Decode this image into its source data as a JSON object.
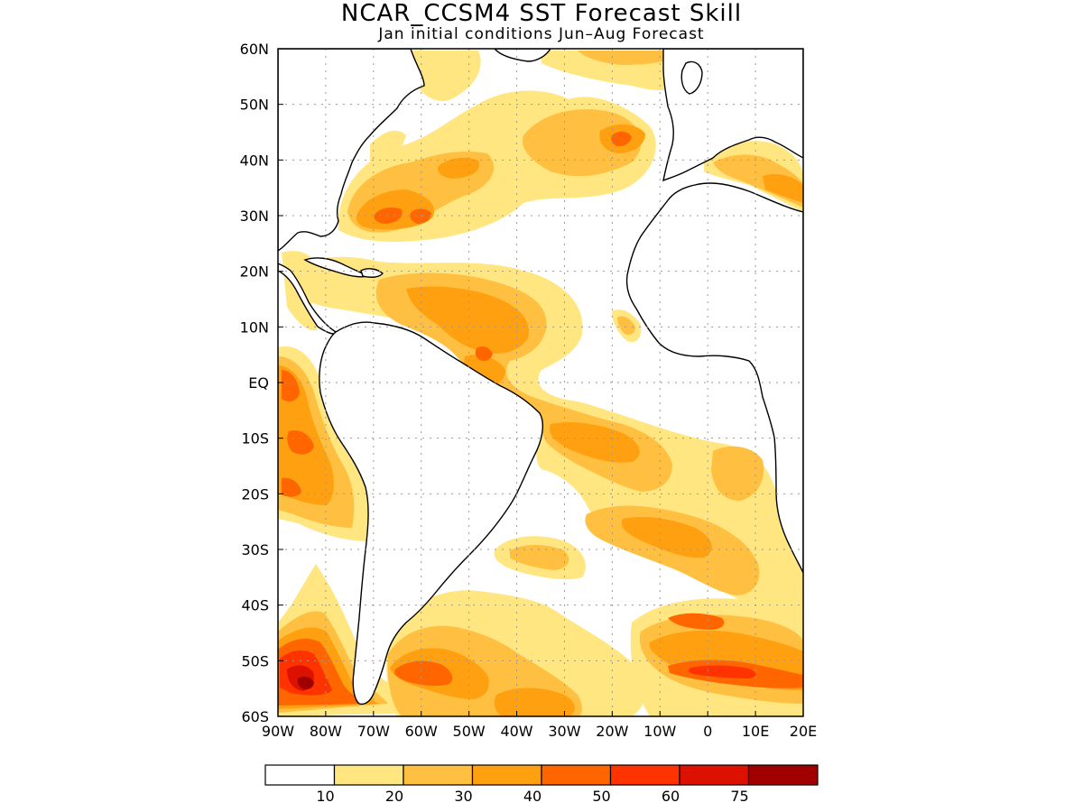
{
  "title": "NCAR_CCSM4 SST Forecast Skill",
  "subtitle": "Jan initial conditions   Jun–Aug Forecast",
  "map": {
    "lon_range": [
      -90,
      20
    ],
    "lat_range": [
      -60,
      60
    ],
    "lon_ticks": [
      {
        "value": -90,
        "label": "90W"
      },
      {
        "value": -80,
        "label": "80W"
      },
      {
        "value": -70,
        "label": "70W"
      },
      {
        "value": -60,
        "label": "60W"
      },
      {
        "value": -50,
        "label": "50W"
      },
      {
        "value": -40,
        "label": "40W"
      },
      {
        "value": -30,
        "label": "30W"
      },
      {
        "value": -20,
        "label": "20W"
      },
      {
        "value": -10,
        "label": "10W"
      },
      {
        "value": 0,
        "label": "0"
      },
      {
        "value": 10,
        "label": "10E"
      },
      {
        "value": 20,
        "label": "20E"
      }
    ],
    "lat_ticks": [
      {
        "value": 60,
        "label": "60N"
      },
      {
        "value": 50,
        "label": "50N"
      },
      {
        "value": 40,
        "label": "40N"
      },
      {
        "value": 30,
        "label": "30N"
      },
      {
        "value": 20,
        "label": "20N"
      },
      {
        "value": 10,
        "label": "10N"
      },
      {
        "value": 0,
        "label": "EQ"
      },
      {
        "value": -10,
        "label": "10S"
      },
      {
        "value": -20,
        "label": "20S"
      },
      {
        "value": -30,
        "label": "30S"
      },
      {
        "value": -40,
        "label": "40S"
      },
      {
        "value": -50,
        "label": "50S"
      },
      {
        "value": -60,
        "label": "60S"
      }
    ],
    "grid": true
  },
  "colorbar": {
    "colors": [
      "#ffffff",
      "#ffe680",
      "#ffbf40",
      "#ffa010",
      "#ff6600",
      "#ff3300",
      "#dd1100",
      "#a00000"
    ],
    "labels": [
      "10",
      "20",
      "30",
      "40",
      "50",
      "60",
      "75"
    ]
  },
  "colors": {
    "c1": "#ffe680",
    "c2": "#ffbf40",
    "c3": "#ffa010",
    "c4": "#ff6600",
    "c5": "#ff3300",
    "c6": "#dd1100",
    "c7": "#a00000"
  }
}
